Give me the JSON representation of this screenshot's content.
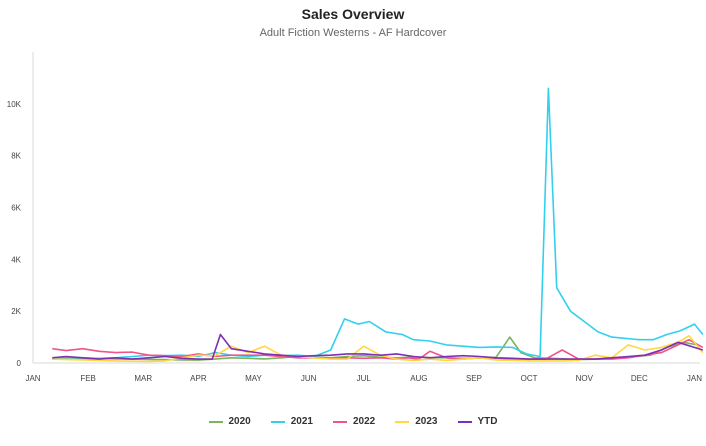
{
  "title": "Sales Overview",
  "subtitle": "Adult Fiction Westerns - AF Hardcover",
  "chart_data": {
    "type": "line",
    "title": "Sales Overview",
    "subtitle": "Adult Fiction Westerns - AF Hardcover",
    "xlabel": "",
    "ylabel": "",
    "grid": false,
    "legend_position": "bottom",
    "x_domain": [
      0,
      12.1
    ],
    "ylim": [
      0,
      12000
    ],
    "y_ticks": [
      0,
      2000,
      4000,
      6000,
      8000,
      10000
    ],
    "y_tick_labels": [
      "0",
      "2K",
      "4K",
      "6K",
      "8K",
      "10K"
    ],
    "x_ticks": [
      0,
      1,
      2,
      3,
      4,
      5,
      6,
      7,
      8,
      9,
      10,
      11,
      12
    ],
    "x_tick_labels": [
      "JAN",
      "FEB",
      "MAR",
      "APR",
      "MAY",
      "JUN",
      "JUL",
      "AUG",
      "SEP",
      "OCT",
      "NOV",
      "DEC",
      "JAN"
    ],
    "series": [
      {
        "name": "2020",
        "color": "#7cb35c",
        "x": [
          0.35,
          0.6,
          0.9,
          1.2,
          1.5,
          1.8,
          2.1,
          2.4,
          2.7,
          3.0,
          3.3,
          3.6,
          3.9,
          4.2,
          4.5,
          4.8,
          5.1,
          5.4,
          5.7,
          6.0,
          6.3,
          6.6,
          6.9,
          7.2,
          7.5,
          7.8,
          8.1,
          8.4,
          8.65,
          8.85,
          9.1,
          9.4,
          9.7,
          10.0,
          10.3,
          10.6,
          10.9,
          11.2,
          11.5,
          11.8,
          12.05
        ],
        "y": [
          150,
          160,
          140,
          180,
          160,
          150,
          140,
          130,
          120,
          110,
          150,
          200,
          180,
          160,
          200,
          250,
          220,
          200,
          250,
          280,
          220,
          200,
          230,
          210,
          200,
          180,
          190,
          220,
          1000,
          400,
          200,
          180,
          150,
          140,
          150,
          200,
          250,
          300,
          600,
          800,
          700
        ]
      },
      {
        "name": "2021",
        "color": "#33d0ee",
        "x": [
          0.35,
          0.6,
          0.9,
          1.2,
          1.5,
          1.8,
          2.1,
          2.4,
          2.7,
          3.0,
          3.3,
          3.6,
          3.9,
          4.2,
          4.5,
          4.8,
          5.1,
          5.4,
          5.65,
          5.9,
          6.1,
          6.4,
          6.7,
          6.9,
          7.2,
          7.5,
          7.8,
          8.1,
          8.4,
          8.7,
          8.95,
          9.2,
          9.35,
          9.5,
          9.75,
          10.0,
          10.25,
          10.5,
          10.75,
          11.0,
          11.25,
          11.5,
          11.75,
          12.0,
          12.15
        ],
        "y": [
          200,
          220,
          200,
          180,
          200,
          250,
          300,
          280,
          300,
          250,
          400,
          300,
          250,
          300,
          280,
          300,
          250,
          500,
          1700,
          1500,
          1600,
          1200,
          1100,
          900,
          850,
          700,
          650,
          600,
          620,
          600,
          350,
          250,
          10600,
          2900,
          2000,
          1600,
          1200,
          1000,
          950,
          900,
          900,
          1100,
          1250,
          1500,
          1100
        ]
      },
      {
        "name": "2022",
        "color": "#f0548a",
        "x": [
          0.35,
          0.6,
          0.9,
          1.2,
          1.5,
          1.8,
          2.1,
          2.4,
          2.7,
          3.0,
          3.3,
          3.6,
          3.9,
          4.2,
          4.5,
          4.8,
          5.1,
          5.4,
          5.7,
          6.0,
          6.3,
          6.6,
          6.8,
          7.0,
          7.2,
          7.5,
          7.8,
          8.1,
          8.4,
          8.7,
          9.0,
          9.3,
          9.6,
          9.9,
          10.2,
          10.5,
          10.8,
          11.1,
          11.4,
          11.7,
          11.9,
          12.15
        ],
        "y": [
          550,
          480,
          550,
          450,
          400,
          420,
          300,
          280,
          250,
          350,
          250,
          300,
          300,
          300,
          250,
          200,
          200,
          180,
          200,
          180,
          200,
          150,
          200,
          150,
          450,
          200,
          150,
          200,
          180,
          150,
          150,
          150,
          500,
          150,
          150,
          150,
          200,
          300,
          400,
          700,
          900,
          600
        ]
      },
      {
        "name": "2023",
        "color": "#ffd93d",
        "x": [
          0.35,
          0.6,
          0.9,
          1.2,
          1.5,
          1.8,
          2.1,
          2.4,
          2.7,
          3.0,
          3.3,
          3.6,
          3.9,
          4.2,
          4.5,
          4.8,
          5.1,
          5.4,
          5.7,
          6.0,
          6.3,
          6.6,
          6.9,
          7.2,
          7.5,
          7.8,
          8.1,
          8.4,
          8.7,
          9.0,
          9.3,
          9.6,
          9.9,
          10.2,
          10.5,
          10.8,
          11.1,
          11.4,
          11.7,
          11.9,
          12.15
        ],
        "y": [
          150,
          130,
          120,
          100,
          80,
          70,
          60,
          80,
          200,
          300,
          280,
          650,
          400,
          650,
          300,
          250,
          200,
          150,
          150,
          650,
          300,
          150,
          100,
          150,
          100,
          150,
          200,
          120,
          100,
          80,
          80,
          80,
          100,
          300,
          200,
          700,
          500,
          600,
          800,
          1050,
          400
        ]
      },
      {
        "name": "YTD",
        "color": "#7d2fb5",
        "x": [
          0.35,
          0.6,
          0.9,
          1.2,
          1.5,
          1.8,
          2.1,
          2.4,
          2.7,
          3.0,
          3.25,
          3.4,
          3.6,
          3.9,
          4.2,
          4.5,
          4.8,
          5.1,
          5.4,
          5.7,
          6.0,
          6.3,
          6.6,
          6.9,
          7.2,
          7.5,
          7.8,
          8.1,
          8.4,
          8.7,
          9.0,
          9.3,
          9.6,
          9.9,
          10.2,
          10.5,
          10.8,
          11.1,
          11.4,
          11.7,
          12.15
        ],
        "y": [
          200,
          250,
          200,
          150,
          200,
          150,
          200,
          250,
          180,
          150,
          150,
          1100,
          550,
          450,
          350,
          300,
          250,
          280,
          300,
          350,
          350,
          300,
          350,
          250,
          200,
          250,
          280,
          250,
          200,
          180,
          150,
          150,
          150,
          150,
          150,
          200,
          250,
          300,
          500,
          800,
          500
        ]
      }
    ]
  }
}
